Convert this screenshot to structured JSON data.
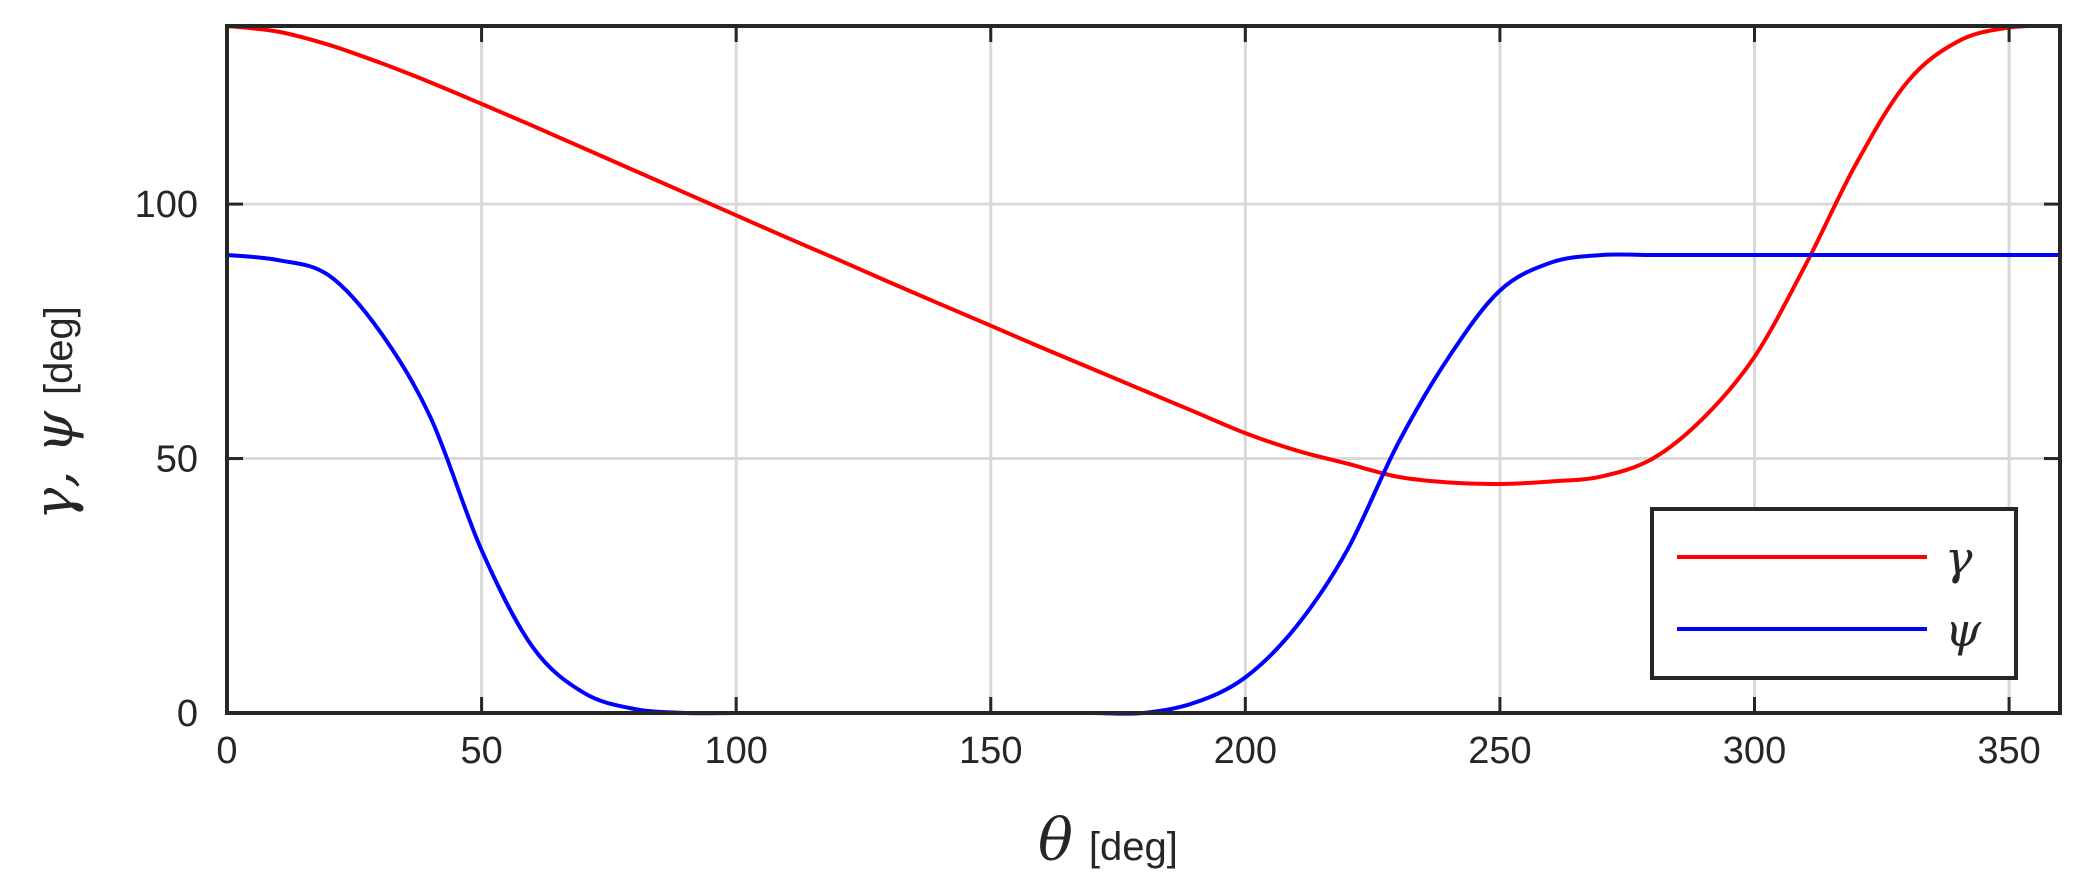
{
  "chart_data": {
    "type": "line",
    "xlabel": {
      "symbol": "θ",
      "unit": "[deg]"
    },
    "ylabel": {
      "symbols": "γ, ψ",
      "unit": "[deg]"
    },
    "xlim": [
      0,
      360
    ],
    "ylim": [
      0,
      135
    ],
    "xticks": [
      0,
      50,
      100,
      150,
      200,
      250,
      300,
      350
    ],
    "yticks": [
      0,
      50,
      100
    ],
    "grid": true,
    "legend_position": "bottom-right",
    "x": [
      0,
      10,
      20,
      30,
      40,
      50,
      60,
      70,
      80,
      90,
      100,
      110,
      120,
      130,
      140,
      150,
      160,
      170,
      180,
      190,
      200,
      210,
      220,
      230,
      240,
      250,
      260,
      270,
      280,
      290,
      300,
      310,
      320,
      330,
      340,
      350,
      360
    ],
    "series": [
      {
        "name": "γ",
        "color": "#ff0000",
        "values": [
          135,
          133.9,
          131.3,
          127.8,
          123.9,
          119.7,
          115.4,
          111.0,
          106.6,
          102.2,
          97.8,
          93.4,
          89.1,
          84.7,
          80.4,
          76.1,
          71.8,
          67.6,
          63.4,
          59.2,
          55.0,
          51.6,
          49.0,
          46.4,
          45.3,
          45.0,
          45.5,
          46.5,
          50.0,
          58.0,
          70.0,
          88.0,
          108.0,
          124.0,
          132.0,
          134.7,
          135
        ]
      },
      {
        "name": "ψ",
        "color": "#0000ff",
        "values": [
          90,
          89.0,
          86.0,
          75.0,
          58.0,
          32.0,
          13.0,
          4.0,
          0.8,
          0,
          0,
          0,
          0,
          0,
          0,
          0,
          0,
          0,
          0,
          2.0,
          7.0,
          17.0,
          32.0,
          53.0,
          70.0,
          83.0,
          88.5,
          90,
          90,
          90,
          90,
          90,
          90,
          90,
          90,
          90,
          90
        ]
      }
    ]
  }
}
